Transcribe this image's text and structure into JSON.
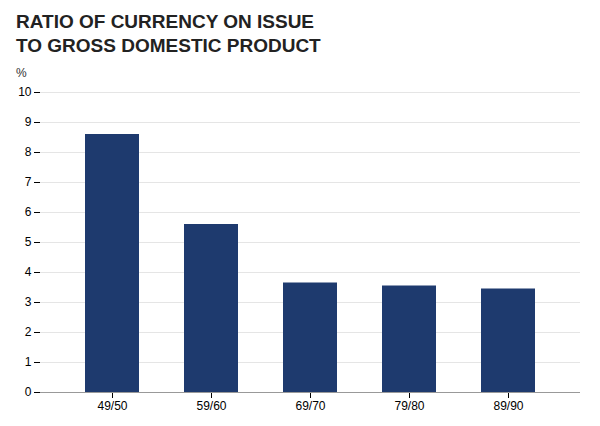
{
  "chart_data": {
    "type": "bar",
    "title": "RATIO OF CURRENCY ON ISSUE\nTO GROSS DOMESTIC PRODUCT",
    "ylabel": "%",
    "categories": [
      "49/50",
      "59/60",
      "69/70",
      "79/80",
      "89/90"
    ],
    "values": [
      8.6,
      5.6,
      3.65,
      3.55,
      3.45
    ],
    "color": "#1e3a6e",
    "ylim": [
      0,
      10
    ],
    "yticks": [
      0,
      1,
      2,
      3,
      4,
      5,
      6,
      7,
      8,
      9,
      10
    ],
    "grid": true
  }
}
